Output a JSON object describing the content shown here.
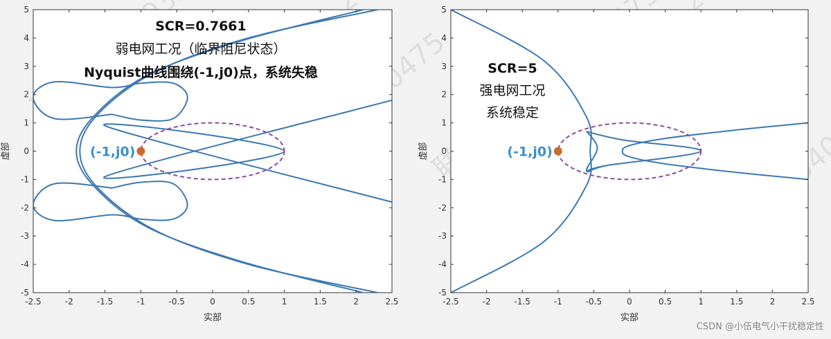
{
  "colors": {
    "curve": "#3b78b3",
    "point": "#cf6a2e",
    "ellipse": "#8a4c9e",
    "point_label": "#3a8fd0",
    "axis": "#333333"
  },
  "watermark": {
    "text": "联系qq: 2293540475"
  },
  "credit": "CSDN @小伍电气小干扰稳定性",
  "chart_data": [
    {
      "type": "line",
      "xlabel": "实部",
      "ylabel": "虚部",
      "xlim": [
        -2.5,
        2.5
      ],
      "ylim": [
        -5,
        5
      ],
      "xticks": [
        "-2.5",
        "-2",
        "-1.5",
        "-1",
        "-0.5",
        "0",
        "0.5",
        "1",
        "1.5",
        "2",
        "2.5"
      ],
      "yticks": [
        "5",
        "4",
        "3",
        "2",
        "1",
        "0",
        "-1",
        "-2",
        "-3",
        "-4",
        "-5"
      ],
      "annotations": [
        "SCR=0.7661",
        "弱电网工况（临界阻尼状态）",
        "Nyquist曲线围绕(-1,j0)点，系统失稳"
      ],
      "critical_point": {
        "x": -1,
        "y": 0,
        "label": "(-1,j0)"
      },
      "ellipse": {
        "cx": 0,
        "cy": 0,
        "rx": 1,
        "ry": 1
      },
      "series": [
        {
          "x": [
            2.3,
            0.5,
            -0.8,
            -1.6,
            -1.85,
            -1.6,
            -0.8,
            0.5,
            2.3
          ],
          "y": [
            5,
            4,
            2.8,
            1.3,
            0,
            -1.3,
            -2.8,
            -4,
            -5
          ]
        },
        {
          "x": [
            2.1,
            0.4,
            -0.9,
            -1.65,
            -1.9,
            -1.65,
            -0.9,
            0.4,
            2.1
          ],
          "y": [
            5,
            3.9,
            2.7,
            1.25,
            0,
            -1.25,
            -2.7,
            -3.9,
            -5
          ]
        },
        {
          "x": [
            2.5,
            -1.5,
            1.0,
            -1.5,
            2.5
          ],
          "y": [
            1.8,
            -0.9,
            0,
            0.9,
            -1.8
          ]
        },
        {
          "x": [
            -1.4,
            -2.2,
            -2.5,
            -2.2,
            -1.4,
            -1.0,
            -0.55,
            -0.35,
            -0.55,
            -1.0,
            -1.4
          ],
          "y": [
            1.3,
            1.15,
            1.9,
            2.45,
            2.25,
            2.4,
            2.4,
            1.9,
            1.15,
            1.1,
            1.3
          ]
        },
        {
          "x": [
            -1.4,
            -2.2,
            -2.5,
            -2.2,
            -1.4,
            -1.0,
            -0.55,
            -0.35,
            -0.55,
            -1.0,
            -1.4
          ],
          "y": [
            -1.3,
            -1.15,
            -1.9,
            -2.45,
            -2.25,
            -2.4,
            -2.4,
            -1.9,
            -1.15,
            -1.1,
            -1.3
          ]
        }
      ]
    },
    {
      "type": "line",
      "xlabel": "实部",
      "ylabel": "虚部",
      "xlim": [
        -2.5,
        2.5
      ],
      "ylim": [
        -5,
        5
      ],
      "xticks": [
        "-2.5",
        "-2",
        "-1.5",
        "-1",
        "-0.5",
        "0",
        "0.5",
        "1",
        "1.5",
        "2",
        "2.5"
      ],
      "yticks": [
        "5",
        "4",
        "3",
        "2",
        "1",
        "0",
        "-1",
        "-2",
        "-3",
        "-4",
        "-5"
      ],
      "annotations": [
        "SCR=5",
        "强电网工况",
        "系统稳定"
      ],
      "critical_point": {
        "x": -1,
        "y": 0,
        "label": "(-1,j0)"
      },
      "ellipse": {
        "cx": 0,
        "cy": 0,
        "rx": 1,
        "ry": 1
      },
      "series": [
        {
          "x": [
            -2.5,
            -1.2,
            -0.6,
            -0.55,
            -0.6,
            -1.2,
            -2.5
          ],
          "y": [
            5,
            3.2,
            1.2,
            0,
            -1.2,
            -3.2,
            -5
          ]
        },
        {
          "x": [
            -0.6,
            -0.45,
            -0.6,
            -0.3,
            1.0,
            -0.1,
            -0.6,
            -0.1,
            1.0,
            -0.3,
            -0.6
          ],
          "y": [
            0.7,
            0.1,
            -0.7,
            -0.5,
            0,
            0.4,
            0.7,
            0.4,
            0,
            -0.5,
            -0.7
          ]
        },
        {
          "x": [
            2.5,
            1.5,
            0.5,
            0.0,
            -0.1,
            0.0,
            0.5,
            1.5,
            2.5
          ],
          "y": [
            1.0,
            0.75,
            0.45,
            0.2,
            0,
            -0.2,
            -0.45,
            -0.75,
            -1.0
          ]
        }
      ]
    }
  ]
}
